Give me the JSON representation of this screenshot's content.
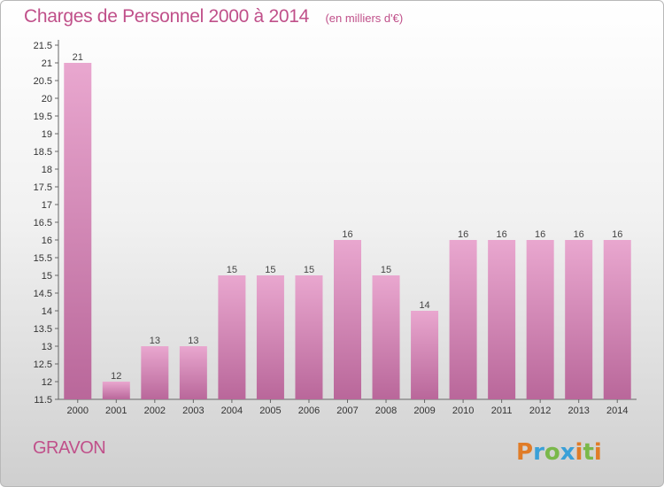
{
  "title": "Charges de Personnel 2000 à 2014",
  "unit": "(en milliers d'€)",
  "commune": "GRAVON",
  "logo": "Proxiti",
  "colors": {
    "bar_top": "#e9a7cf",
    "bar_bottom": "#b9679a",
    "title": "#c0508a",
    "logo_p": "#e07c28",
    "logo_r": "#3aa0d8",
    "logo_o": "#7ab84a",
    "logo_x": "#3aa0d8",
    "logo_i": "#e07c28"
  },
  "chart_data": {
    "type": "bar",
    "categories": [
      "2000",
      "2001",
      "2002",
      "2003",
      "2004",
      "2005",
      "2006",
      "2007",
      "2008",
      "2009",
      "2010",
      "2011",
      "2012",
      "2013",
      "2014"
    ],
    "values": [
      21,
      12,
      13,
      13,
      15,
      15,
      15,
      16,
      15,
      14,
      16,
      16,
      16,
      16,
      16
    ],
    "data_labels": [
      "21",
      "12",
      "13",
      "13",
      "15",
      "15",
      "15",
      "16",
      "15",
      "14",
      "16",
      "16",
      "16",
      "16",
      "16"
    ],
    "yticks": [
      "11.5",
      "12",
      "12.5",
      "13",
      "13.5",
      "14",
      "14.5",
      "15",
      "15.5",
      "16",
      "16.5",
      "17",
      "17.5",
      "18",
      "18.5",
      "19",
      "19.5",
      "20",
      "20.5",
      "21",
      "21.5"
    ],
    "ylim": [
      11.5,
      21.5
    ],
    "grid": false,
    "legend": "none"
  }
}
